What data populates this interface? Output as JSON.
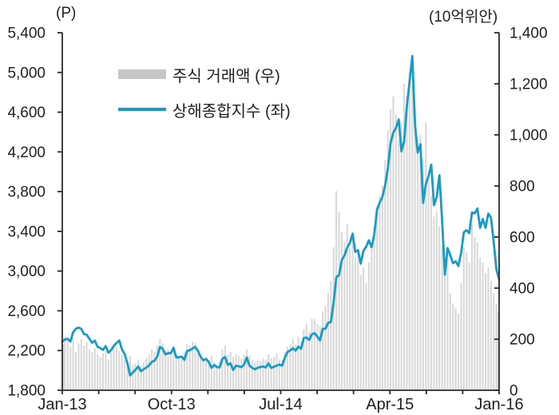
{
  "units": {
    "left": "(P)",
    "right": "(10억위안)"
  },
  "legend": [
    {
      "label": "주식 거래액 (우)",
      "swatch": "bar"
    },
    {
      "label": "상해종합지수 (좌)",
      "swatch": "line"
    }
  ],
  "colors": {
    "bar": "#d9d9d9",
    "legend_bar_swatch": "#c6c6c6",
    "line": "#1a9bc4",
    "axis": "#2a2a2a",
    "text": "#1f1f1f"
  },
  "chart_data": {
    "type": "bar+line combo, dual axis",
    "x_start": "Jan-13",
    "x_end": "Jan-16",
    "total_months": 36,
    "x_tick_labels": [
      "Jan-13",
      "Oct-13",
      "Jul-14",
      "Apr-15",
      "Jan-16"
    ],
    "x_labeled_months": [
      0,
      9,
      18,
      27,
      36
    ],
    "x_minor_tick_every_months": 3,
    "left_axis": {
      "unit": "(P)",
      "min": 1800,
      "max": 5400,
      "step": 400
    },
    "right_axis": {
      "unit": "(10억위안)",
      "min": 0,
      "max": 1400,
      "step": 200
    },
    "grid": false,
    "legend_position": "upper-left-inside",
    "series": [
      {
        "name": "주식 거래액 (우)",
        "type": "bar",
        "axis": "right",
        "values": [
          180,
          210,
          195,
          170,
          205,
          150,
          185,
          200,
          175,
          190,
          160,
          150,
          165,
          140,
          130,
          145,
          155,
          120,
          150,
          165,
          170,
          155,
          140,
          120,
          110,
          135,
          100,
          105,
          120,
          95,
          110,
          125,
          140,
          160,
          150,
          175,
          200,
          185,
          155,
          160,
          145,
          170,
          140,
          130,
          135,
          150,
          180,
          175,
          190,
          185,
          160,
          130,
          115,
          125,
          120,
          135,
          110,
          100,
          115,
          160,
          175,
          140,
          150,
          130,
          140,
          135,
          125,
          140,
          160,
          135,
          120,
          110,
          120,
          115,
          125,
          120,
          140,
          125,
          130,
          145,
          120,
          115,
          150,
          170,
          180,
          200,
          180,
          210,
          190,
          240,
          260,
          230,
          280,
          280,
          260,
          250,
          310,
          330,
          380,
          430,
          560,
          780,
          700,
          620,
          580,
          650,
          560,
          620,
          520,
          540,
          450,
          480,
          420,
          500,
          560,
          640,
          720,
          760,
          800,
          900,
          1020,
          1100,
          1150,
          1080,
          980,
          1050,
          1200,
          1150,
          1250,
          1200,
          1100,
          950,
          1000,
          900,
          1050,
          820,
          760,
          680,
          700,
          640,
          560,
          480,
          520,
          380,
          340,
          320,
          300,
          420,
          560,
          540,
          500,
          650,
          600,
          580,
          520,
          500,
          460,
          480,
          430,
          380,
          340,
          310
        ]
      },
      {
        "name": "상해종합지수 (좌)",
        "type": "line",
        "axis": "left",
        "values": [
          2290,
          2311,
          2317,
          2291,
          2385,
          2419,
          2432,
          2418,
          2366,
          2359,
          2318,
          2278,
          2300,
          2237,
          2225,
          2206,
          2245,
          2178,
          2205,
          2247,
          2276,
          2301,
          2211,
          2162,
          2074,
          1950,
          1979,
          2007,
          2039,
          1992,
          2011,
          2029,
          2052,
          2086,
          2098,
          2140,
          2236,
          2218,
          2160,
          2175,
          2174,
          2228,
          2132,
          2133,
          2139,
          2106,
          2196,
          2202,
          2220,
          2237,
          2196,
          2137,
          2101,
          2116,
          2083,
          2026,
          2054,
          2033,
          2030,
          2115,
          2135,
          2056,
          2071,
          2004,
          2047,
          2041,
          2033,
          2058,
          2130,
          2048,
          2026,
          2011,
          2026,
          2034,
          2039,
          2030,
          2070,
          2026,
          2036,
          2048,
          2059,
          2047,
          2126,
          2185,
          2201,
          2223,
          2199,
          2240,
          2217,
          2326,
          2331,
          2306,
          2364,
          2375,
          2341,
          2302,
          2420,
          2420,
          2479,
          2487,
          2683,
          2938,
          2958,
          3109,
          3158,
          3235,
          3285,
          3376,
          3193,
          3210,
          3075,
          3204,
          3246,
          3310,
          3241,
          3372,
          3617,
          3691,
          3748,
          3864,
          4034,
          4288,
          4394,
          4442,
          4527,
          4206,
          4308,
          4658,
          4912,
          5166,
          4478,
          4193,
          4277,
          3687,
          3877,
          3957,
          4071,
          3664,
          3744,
          3965,
          3508,
          2964,
          3232,
          3160,
          3080,
          3098,
          3052,
          3183,
          3391,
          3412,
          3383,
          3590,
          3581,
          3630,
          3436,
          3525,
          3435,
          3579,
          3539,
          3296,
          3016,
          2916
        ]
      }
    ]
  }
}
